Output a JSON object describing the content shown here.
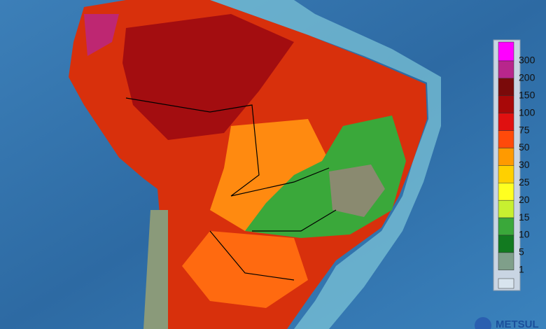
{
  "legend": {
    "items": [
      {
        "label": 300,
        "color": "#ff00ff"
      },
      {
        "label": 200,
        "color": "#b8268c"
      },
      {
        "label": 150,
        "color": "#7a0a0a"
      },
      {
        "label": 100,
        "color": "#a80808"
      },
      {
        "label": 75,
        "color": "#e01010"
      },
      {
        "label": 50,
        "color": "#ff4a0a"
      },
      {
        "label": 30,
        "color": "#ff9a00"
      },
      {
        "label": 25,
        "color": "#ffd000"
      },
      {
        "label": 20,
        "color": "#ffff20"
      },
      {
        "label": 15,
        "color": "#c8f030"
      },
      {
        "label": 10,
        "color": "#3aa83a"
      },
      {
        "label": 5,
        "color": "#127a20"
      },
      {
        "label": 1,
        "color": "#7f9f8a"
      }
    ]
  },
  "logo": "METSUL"
}
